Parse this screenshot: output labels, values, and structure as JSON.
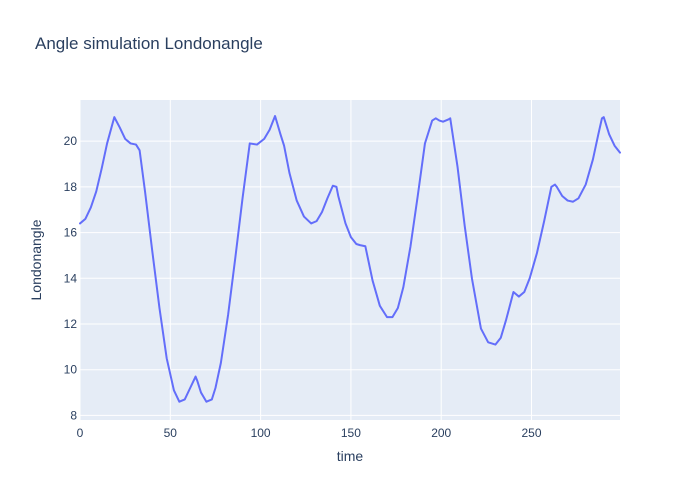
{
  "chart_data": {
    "type": "line",
    "title": "Angle simulation Londonangle",
    "xlabel": "time",
    "ylabel": "Londonangle",
    "xlim": [
      0,
      299
    ],
    "ylim": [
      7.8,
      21.8
    ],
    "x_ticks": [
      0,
      50,
      100,
      150,
      200,
      250
    ],
    "y_ticks": [
      8,
      10,
      12,
      14,
      16,
      18,
      20
    ],
    "grid": true,
    "legend": "none",
    "colors": {
      "plot_bg": "#e5ecf6",
      "grid": "#ffffff",
      "line": "#636efa",
      "text": "#2a3f5f"
    },
    "series": [
      {
        "x": [
          0,
          3,
          6,
          9,
          12,
          15,
          19,
          22,
          25,
          28,
          31,
          33,
          36,
          40,
          44,
          48,
          52,
          55,
          58,
          61,
          64,
          65,
          67,
          70,
          73,
          75,
          78,
          82,
          86,
          90,
          94,
          98,
          102,
          105,
          108,
          111,
          113,
          116,
          120,
          124,
          128,
          131,
          134,
          137,
          140,
          142,
          143,
          147,
          150,
          153,
          155,
          158,
          162,
          166,
          170,
          173,
          176,
          179,
          183,
          187,
          191,
          195,
          197,
          199,
          201,
          204,
          205,
          209,
          213,
          217,
          222,
          226,
          230,
          233,
          236,
          240,
          243,
          246,
          249,
          253,
          257,
          261,
          263,
          264,
          267,
          270,
          273,
          276,
          280,
          284,
          287,
          289,
          290,
          293,
          296,
          299
        ],
        "y": [
          16.4,
          16.6,
          17.1,
          17.8,
          18.8,
          19.9,
          21.05,
          20.6,
          20.1,
          19.9,
          19.85,
          19.6,
          17.8,
          15.2,
          12.7,
          10.5,
          9.1,
          8.6,
          8.7,
          9.2,
          9.7,
          9.5,
          9.0,
          8.6,
          8.7,
          9.2,
          10.3,
          12.4,
          14.9,
          17.5,
          19.9,
          19.85,
          20.1,
          20.5,
          21.1,
          20.3,
          19.8,
          18.6,
          17.4,
          16.7,
          16.4,
          16.5,
          16.9,
          17.5,
          18.05,
          18.0,
          17.6,
          16.4,
          15.8,
          15.5,
          15.45,
          15.4,
          13.9,
          12.8,
          12.3,
          12.3,
          12.7,
          13.6,
          15.4,
          17.6,
          19.9,
          20.9,
          21.0,
          20.9,
          20.85,
          20.95,
          21.0,
          18.9,
          16.3,
          14.0,
          11.8,
          11.2,
          11.1,
          11.4,
          12.2,
          13.4,
          13.2,
          13.4,
          14.0,
          15.1,
          16.5,
          18.0,
          18.1,
          18.0,
          17.6,
          17.4,
          17.35,
          17.5,
          18.1,
          19.2,
          20.3,
          21.0,
          21.05,
          20.3,
          19.8,
          19.5
        ]
      }
    ]
  }
}
